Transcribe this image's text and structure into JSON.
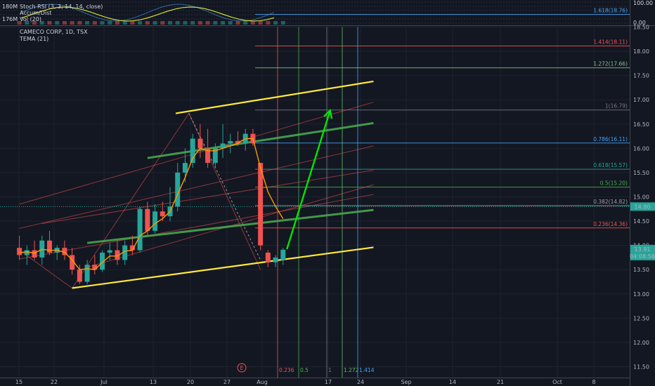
{
  "header": {
    "symbol_line": "CAMECO CORP, 1D, TSX",
    "tema_line": "TEMA (21)",
    "stoch_line": "Stoch RSI (3, 3, 14, 14, close)",
    "accum_line": "Accum/Dist",
    "vol_line": "Vol (20)"
  },
  "top_pane_axis": {
    "left_labels": [
      "180M",
      "176M"
    ],
    "right_labels": [
      "100.00",
      "0.00"
    ]
  },
  "price_tag": "14.80",
  "last_price": {
    "value": "13.91",
    "countdown": "04:08:56"
  },
  "event_marker": "E",
  "fib_time_labels": [
    {
      "text": "0.236",
      "color": "#ef5350"
    },
    {
      "text": "0.5",
      "color": "#4caf50"
    },
    {
      "text": "1",
      "color": "#787b86"
    },
    {
      "text": "1.272",
      "color": "#66bb6a"
    },
    {
      "text": "1.414",
      "color": "#42a5f5"
    }
  ],
  "colors": {
    "up": "#26a69a",
    "down": "#ef5350",
    "channel": "#ffeb3b",
    "midline": "#4caf50",
    "tema": "#ff9800",
    "arrow": "#00e600"
  },
  "chart_data": {
    "type": "candlestick",
    "title": "CAMECO CORP, 1D, TSX",
    "ylim": [
      11.3,
      19.1
    ],
    "y_ticks": [
      "11.50",
      "12.00",
      "12.50",
      "13.00",
      "13.50",
      "14.00",
      "14.50",
      "15.00",
      "15.50",
      "16.00",
      "16.50",
      "17.00",
      "17.50",
      "18.00",
      "18.50"
    ],
    "x_ticks": [
      "15",
      "22",
      "Jul",
      "13",
      "20",
      "27",
      "Aug",
      "17",
      "24",
      "Sep",
      "14",
      "21",
      "Oct",
      "8"
    ],
    "candles": [
      {
        "o": 13.95,
        "h": 14.2,
        "l": 13.7,
        "c": 13.8
      },
      {
        "o": 13.8,
        "h": 14.0,
        "l": 13.6,
        "c": 13.9
      },
      {
        "o": 13.9,
        "h": 14.1,
        "l": 13.7,
        "c": 13.75
      },
      {
        "o": 13.75,
        "h": 14.2,
        "l": 13.6,
        "c": 14.1
      },
      {
        "o": 14.1,
        "h": 14.3,
        "l": 13.8,
        "c": 13.85
      },
      {
        "o": 13.85,
        "h": 14.0,
        "l": 13.7,
        "c": 13.95
      },
      {
        "o": 13.95,
        "h": 14.1,
        "l": 13.7,
        "c": 13.8
      },
      {
        "o": 13.8,
        "h": 13.95,
        "l": 13.4,
        "c": 13.5
      },
      {
        "o": 13.5,
        "h": 13.6,
        "l": 13.2,
        "c": 13.25
      },
      {
        "o": 13.25,
        "h": 13.7,
        "l": 13.2,
        "c": 13.6
      },
      {
        "o": 13.6,
        "h": 13.8,
        "l": 13.4,
        "c": 13.5
      },
      {
        "o": 13.5,
        "h": 13.9,
        "l": 13.45,
        "c": 13.85
      },
      {
        "o": 13.85,
        "h": 14.05,
        "l": 13.7,
        "c": 13.9
      },
      {
        "o": 13.9,
        "h": 14.1,
        "l": 13.6,
        "c": 13.7
      },
      {
        "o": 13.7,
        "h": 14.1,
        "l": 13.6,
        "c": 14.0
      },
      {
        "o": 14.0,
        "h": 14.2,
        "l": 13.8,
        "c": 13.9
      },
      {
        "o": 13.9,
        "h": 14.8,
        "l": 13.85,
        "c": 14.75
      },
      {
        "o": 14.75,
        "h": 14.9,
        "l": 14.2,
        "c": 14.3
      },
      {
        "o": 14.3,
        "h": 14.85,
        "l": 14.25,
        "c": 14.7
      },
      {
        "o": 14.7,
        "h": 14.9,
        "l": 14.5,
        "c": 14.6
      },
      {
        "o": 14.6,
        "h": 15.2,
        "l": 14.5,
        "c": 14.8
      },
      {
        "o": 14.8,
        "h": 15.7,
        "l": 14.7,
        "c": 15.5
      },
      {
        "o": 15.5,
        "h": 16.0,
        "l": 15.3,
        "c": 15.7
      },
      {
        "o": 15.7,
        "h": 16.3,
        "l": 15.6,
        "c": 16.2
      },
      {
        "o": 16.2,
        "h": 16.5,
        "l": 15.8,
        "c": 16.0
      },
      {
        "o": 16.0,
        "h": 16.4,
        "l": 15.6,
        "c": 15.7
      },
      {
        "o": 15.7,
        "h": 16.1,
        "l": 15.6,
        "c": 16.0
      },
      {
        "o": 16.0,
        "h": 16.5,
        "l": 15.8,
        "c": 16.1
      },
      {
        "o": 16.1,
        "h": 16.3,
        "l": 15.9,
        "c": 16.15
      },
      {
        "o": 16.15,
        "h": 16.35,
        "l": 16.05,
        "c": 16.1
      },
      {
        "o": 16.1,
        "h": 16.4,
        "l": 15.95,
        "c": 16.3
      },
      {
        "o": 16.3,
        "h": 16.4,
        "l": 16.05,
        "c": 16.1
      },
      {
        "o": 15.7,
        "h": 15.7,
        "l": 13.9,
        "c": 14.0
      },
      {
        "o": 13.85,
        "h": 13.9,
        "l": 13.55,
        "c": 13.65
      },
      {
        "o": 13.65,
        "h": 13.8,
        "l": 13.55,
        "c": 13.75
      },
      {
        "o": 13.7,
        "h": 13.95,
        "l": 13.6,
        "c": 13.91
      }
    ],
    "tema": [
      13.85,
      13.87,
      13.84,
      13.92,
      13.9,
      13.9,
      13.86,
      13.7,
      13.5,
      13.52,
      13.5,
      13.65,
      13.78,
      13.78,
      13.88,
      13.9,
      14.2,
      14.3,
      14.45,
      14.55,
      14.7,
      15.05,
      15.4,
      15.8,
      16.0,
      15.95,
      15.95,
      16.0,
      16.05,
      16.1,
      16.2,
      16.2,
      15.6,
      15.1,
      14.8,
      14.55
    ],
    "fib_levels": [
      {
        "label": "0.236(14.36)",
        "value": 14.36,
        "color": "#ef5350"
      },
      {
        "label": "0.382(14.82)",
        "value": 14.82,
        "color": "#9e9e9e"
      },
      {
        "label": "0.5(15.20)",
        "value": 15.2,
        "color": "#4caf50"
      },
      {
        "label": "0.618(15.57)",
        "value": 15.57,
        "color": "#26a69a"
      },
      {
        "label": "0.786(16.11)",
        "value": 16.11,
        "color": "#42a5f5"
      },
      {
        "label": "1(16.79)",
        "value": 16.79,
        "color": "#787b86"
      },
      {
        "label": "1.272(17.66)",
        "value": 17.66,
        "color": "#81c784"
      },
      {
        "label": "1.414(18.11)",
        "value": 18.11,
        "color": "#ef5350"
      },
      {
        "label": "1.618(18.76)",
        "value": 18.76,
        "color": "#42a5f5"
      }
    ],
    "channel_top": {
      "from": [
        20,
        16.72
      ],
      "to": [
        47,
        17.38
      ]
    },
    "channel_bottom": {
      "from": [
        7,
        13.12
      ],
      "to": [
        47,
        13.96
      ]
    },
    "midline_upper": {
      "from": [
        17,
        15.8
      ],
      "to": [
        47,
        16.52
      ]
    },
    "midline_lower": {
      "from": [
        9,
        14.05
      ],
      "to": [
        47,
        14.73
      ]
    },
    "projection_arrow": {
      "from": [
        35.5,
        13.92
      ],
      "to": [
        40.5,
        16.78
      ]
    },
    "price_line": 14.8
  }
}
